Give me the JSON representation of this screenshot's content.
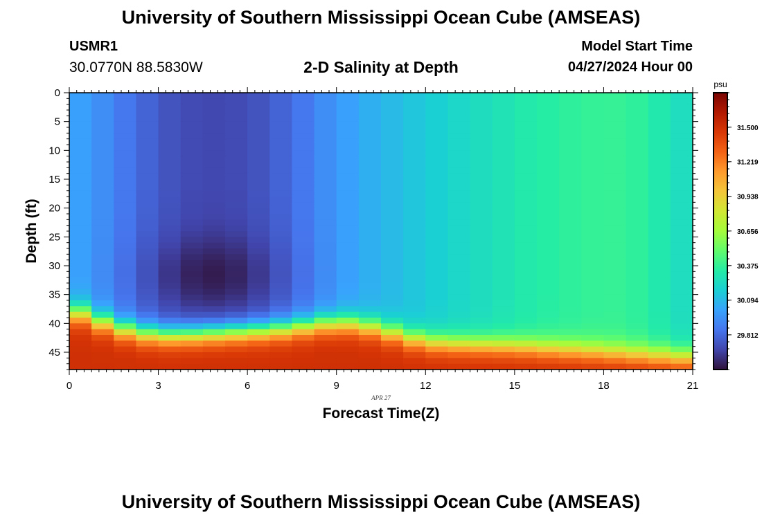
{
  "header": {
    "main_title": "University of Southern Mississippi Ocean Cube (AMSEAS)",
    "station_id": "USMR1",
    "station_coords": "30.0770N  88.5830W",
    "plot_title": "2-D Salinity at Depth",
    "start_label": "Model Start Time",
    "start_value": "04/27/2024 Hour 00"
  },
  "footer": {
    "main_title": "University of Southern Mississippi Ocean Cube (AMSEAS)"
  },
  "chart_data": {
    "type": "heatmap",
    "title": "2-D Salinity at Depth",
    "xlabel": "Forecast Time(Z)",
    "ylabel": "Depth (ft)",
    "x_range": [
      0,
      21
    ],
    "y_range": [
      0,
      48
    ],
    "x_ticks": [
      0,
      3,
      6,
      9,
      12,
      15,
      18,
      21
    ],
    "x_tick_labels": [
      "0",
      "3",
      "6",
      "9",
      "12",
      "15",
      "18",
      "21"
    ],
    "y_ticks": [
      0,
      5,
      10,
      15,
      20,
      25,
      30,
      35,
      40,
      45
    ],
    "y_tick_labels": [
      "0",
      "5",
      "10",
      "15",
      "20",
      "25",
      "30",
      "35",
      "40",
      "45"
    ],
    "date_annotation": "APR 27",
    "colorbar": {
      "unit": "psu",
      "range": [
        29.53,
        31.78
      ],
      "ticks": [
        29.812,
        30.094,
        30.375,
        30.656,
        30.938,
        31.219,
        31.5
      ],
      "tick_labels": [
        "29.812",
        "30.094",
        "30.375",
        "30.656",
        "30.938",
        "31.219",
        "31.500"
      ],
      "stops": [
        "#30123b",
        "#4145ab",
        "#4675ed",
        "#39a2fc",
        "#1bcfd4",
        "#24eca6",
        "#61fc6c",
        "#a4fc3b",
        "#d1e834",
        "#f3c63a",
        "#fe9b2d",
        "#f36315",
        "#d93806",
        "#b11901",
        "#7a0402"
      ]
    },
    "times": [
      0,
      0.75,
      1.5,
      2.25,
      3,
      3.75,
      4.5,
      5.25,
      6,
      6.75,
      7.5,
      8.25,
      9,
      9.75,
      10.5,
      11.25,
      12,
      12.75,
      13.5,
      14.25,
      15,
      15.75,
      16.5,
      17.25,
      18,
      18.75,
      19.5,
      20.25,
      21
    ],
    "upper_salinity": [
      30.04,
      29.98,
      29.9,
      29.82,
      29.76,
      29.72,
      29.7,
      29.7,
      29.72,
      29.76,
      29.82,
      29.9,
      29.98,
      30.04,
      30.08,
      30.12,
      30.16,
      30.2,
      30.23,
      30.26,
      30.3,
      30.33,
      30.35,
      30.37,
      30.38,
      30.38,
      30.34,
      30.28,
      30.22
    ],
    "interface_depth_ft": [
      37.5,
      39,
      40.5,
      41.5,
      42,
      42,
      41.8,
      41.6,
      41.4,
      41.2,
      40.8,
      40.3,
      39.8,
      40.2,
      41,
      42.2,
      43.2,
      43.5,
      43.7,
      43.8,
      44,
      44.2,
      44.5,
      44.7,
      45,
      45.2,
      45.5,
      45.7,
      46
    ],
    "bottom_salinity": 31.5,
    "min_core": {
      "time": 4.8,
      "depth_ft": 31.5,
      "salinity": 29.56
    }
  }
}
